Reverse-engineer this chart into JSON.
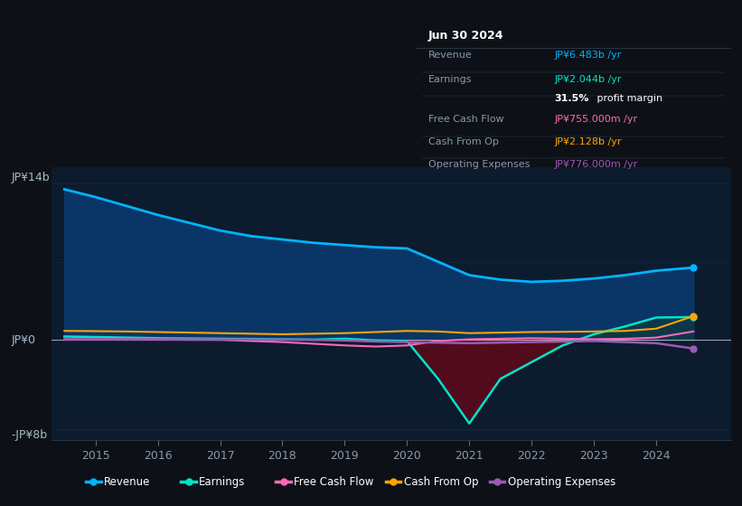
{
  "background_color": "#0d1117",
  "plot_bg_color": "#0d1b2e",
  "ylabel_top": "JP¥14b",
  "ylabel_bottom": "-JP¥8b",
  "zero_label": "JP¥0",
  "ylim": [
    -9,
    15.5
  ],
  "xlim": [
    2014.3,
    2025.2
  ],
  "x_ticks": [
    2015,
    2016,
    2017,
    2018,
    2019,
    2020,
    2021,
    2022,
    2023,
    2024
  ],
  "years": [
    2014.5,
    2015,
    2015.5,
    2016,
    2016.5,
    2017,
    2017.5,
    2018,
    2018.5,
    2019,
    2019.5,
    2020,
    2020.5,
    2021,
    2021.5,
    2022,
    2022.5,
    2023,
    2023.5,
    2024,
    2024.6
  ],
  "revenue": [
    13.5,
    12.8,
    12.0,
    11.2,
    10.5,
    9.8,
    9.3,
    9.0,
    8.7,
    8.5,
    8.3,
    8.2,
    7.0,
    5.8,
    5.4,
    5.2,
    5.3,
    5.5,
    5.8,
    6.2,
    6.483
  ],
  "earnings": [
    0.3,
    0.25,
    0.2,
    0.15,
    0.12,
    0.1,
    0.08,
    0.05,
    0.02,
    0.1,
    -0.05,
    -0.1,
    -3.5,
    -7.5,
    -3.5,
    -2.0,
    -0.5,
    0.5,
    1.2,
    2.0,
    2.044
  ],
  "free_cash_flow": [
    0.05,
    0.05,
    0.04,
    0.03,
    0.0,
    0.0,
    -0.1,
    -0.2,
    -0.35,
    -0.5,
    -0.6,
    -0.5,
    -0.1,
    0.05,
    0.1,
    0.15,
    0.1,
    0.05,
    0.1,
    0.2,
    0.755
  ],
  "cash_from_op": [
    0.8,
    0.78,
    0.75,
    0.7,
    0.65,
    0.6,
    0.55,
    0.5,
    0.55,
    0.6,
    0.7,
    0.8,
    0.75,
    0.6,
    0.65,
    0.7,
    0.72,
    0.75,
    0.8,
    1.0,
    2.128
  ],
  "operating_expenses": [
    0.05,
    0.05,
    0.05,
    0.05,
    0.04,
    0.04,
    0.03,
    0.02,
    0.0,
    -0.05,
    -0.15,
    -0.2,
    -0.25,
    -0.3,
    -0.25,
    -0.2,
    -0.15,
    -0.1,
    -0.2,
    -0.3,
    -0.776
  ],
  "revenue_color": "#00b4ff",
  "earnings_color": "#00e5c8",
  "free_cash_flow_color": "#ff69b4",
  "cash_from_op_color": "#ffa500",
  "operating_expenses_color": "#9b59b6",
  "revenue_fill_color": "#0a3a6e",
  "earnings_fill_neg_color": "#5a0a1a",
  "earnings_fill_pos_color": "#0a3a30",
  "grid_color": "#1e3a5f",
  "tick_color": "#8899aa",
  "legend_bg": "#0d1117",
  "legend_border": "#334455",
  "info_box_bg": "#090d13",
  "info_box_border": "#334455",
  "info_title": "Jun 30 2024",
  "info_rows": [
    {
      "label": "Revenue",
      "value": "JP¥6.483b /yr",
      "value_color": "#00b4ff"
    },
    {
      "label": "Earnings",
      "value": "JP¥2.044b /yr",
      "value_color": "#00e5c8"
    },
    {
      "label": "",
      "value": "31.5% profit margin",
      "value_color": "#ffffff"
    },
    {
      "label": "Free Cash Flow",
      "value": "JP¥755.000m /yr",
      "value_color": "#ff69b4"
    },
    {
      "label": "Cash From Op",
      "value": "JP¥2.128b /yr",
      "value_color": "#ffa500"
    },
    {
      "label": "Operating Expenses",
      "value": "JP¥776.000m /yr",
      "value_color": "#9b59b6"
    }
  ],
  "legend_items": [
    {
      "name": "Revenue",
      "color": "#00b4ff"
    },
    {
      "name": "Earnings",
      "color": "#00e5c8"
    },
    {
      "name": "Free Cash Flow",
      "color": "#ff69b4"
    },
    {
      "name": "Cash From Op",
      "color": "#ffa500"
    },
    {
      "name": "Operating Expenses",
      "color": "#9b59b6"
    }
  ]
}
